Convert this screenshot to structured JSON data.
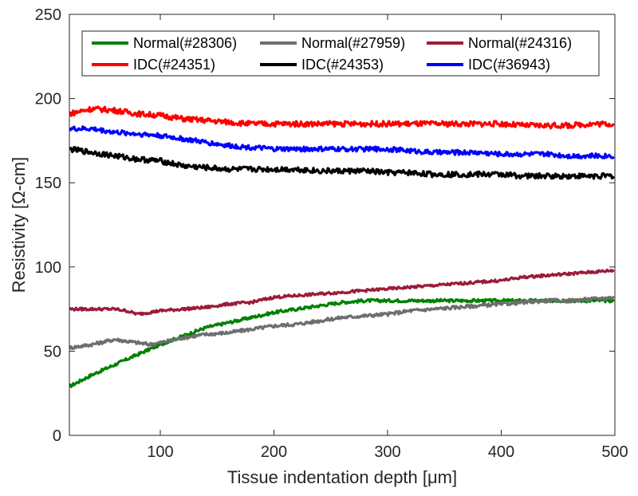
{
  "chart_data": {
    "type": "line",
    "title": "",
    "xlabel": "Tissue indentation depth [μm]",
    "ylabel": "Resistivity [Ω-cm]",
    "xlim": [
      20,
      500
    ],
    "ylim": [
      0,
      250
    ],
    "xticks": [
      100,
      200,
      300,
      400,
      500
    ],
    "yticks": [
      0,
      50,
      100,
      150,
      200,
      250
    ],
    "grid": false,
    "legend_position": "top",
    "series": [
      {
        "name": "Normal(#28306)",
        "color": "#008000",
        "x": [
          20,
          40,
          60,
          80,
          100,
          120,
          140,
          160,
          180,
          200,
          220,
          240,
          260,
          280,
          300,
          320,
          340,
          360,
          380,
          400,
          420,
          440,
          460,
          480,
          500
        ],
        "y": [
          29,
          36,
          42,
          48,
          54,
          59,
          64,
          67,
          70,
          73,
          75,
          77,
          79,
          80,
          80,
          80,
          80,
          80,
          80,
          80,
          80,
          80,
          80,
          80,
          80
        ]
      },
      {
        "name": "Normal(#27959)",
        "color": "#6e6e6e",
        "x": [
          20,
          40,
          60,
          70,
          80,
          90,
          100,
          120,
          140,
          160,
          180,
          200,
          220,
          240,
          260,
          280,
          300,
          320,
          340,
          360,
          380,
          400,
          420,
          440,
          460,
          480,
          500
        ],
        "y": [
          52,
          54,
          57,
          56,
          55,
          54,
          55,
          58,
          60,
          61,
          63,
          65,
          66,
          68,
          70,
          71,
          72,
          74,
          75,
          76,
          77,
          78,
          79,
          80,
          80,
          81,
          82
        ]
      },
      {
        "name": "Normal(#24316)",
        "color": "#9b1b3a",
        "x": [
          20,
          40,
          60,
          70,
          80,
          100,
          120,
          140,
          160,
          180,
          200,
          220,
          240,
          260,
          280,
          300,
          320,
          340,
          360,
          380,
          400,
          420,
          440,
          460,
          480,
          500
        ],
        "y": [
          75,
          75,
          75,
          74,
          72,
          74,
          75,
          76,
          78,
          79,
          82,
          83,
          84,
          85,
          86,
          87,
          88,
          89,
          90,
          91,
          92,
          94,
          95,
          96,
          97,
          98
        ]
      },
      {
        "name": "IDC(#24351)",
        "color": "#ff0000",
        "x": [
          20,
          40,
          60,
          80,
          100,
          120,
          140,
          160,
          180,
          200,
          220,
          240,
          260,
          280,
          300,
          320,
          340,
          360,
          380,
          400,
          420,
          440,
          460,
          480,
          500
        ],
        "y": [
          191,
          194,
          193,
          191,
          190,
          188,
          187,
          186,
          185,
          185,
          185,
          185,
          185,
          185,
          185,
          185,
          185,
          185,
          185,
          185,
          184,
          184,
          184,
          185,
          185
        ]
      },
      {
        "name": "IDC(#24353)",
        "color": "#000000",
        "x": [
          20,
          40,
          60,
          80,
          100,
          120,
          140,
          160,
          180,
          200,
          220,
          240,
          260,
          280,
          300,
          320,
          340,
          360,
          380,
          400,
          420,
          440,
          460,
          480,
          500
        ],
        "y": [
          170,
          168,
          166,
          164,
          163,
          160,
          159,
          158,
          158,
          158,
          158,
          157,
          157,
          157,
          156,
          156,
          155,
          155,
          155,
          155,
          154,
          154,
          154,
          154,
          154
        ]
      },
      {
        "name": "IDC(#36943)",
        "color": "#0000ff",
        "x": [
          20,
          40,
          60,
          80,
          100,
          120,
          140,
          160,
          180,
          200,
          220,
          240,
          260,
          280,
          300,
          320,
          340,
          360,
          380,
          400,
          420,
          440,
          460,
          480,
          500
        ],
        "y": [
          182,
          182,
          180,
          179,
          178,
          176,
          174,
          172,
          171,
          170,
          170,
          170,
          170,
          170,
          170,
          169,
          168,
          168,
          168,
          167,
          167,
          167,
          166,
          166,
          166
        ]
      }
    ],
    "legend_order": [
      0,
      1,
      2,
      3,
      4,
      5
    ]
  }
}
